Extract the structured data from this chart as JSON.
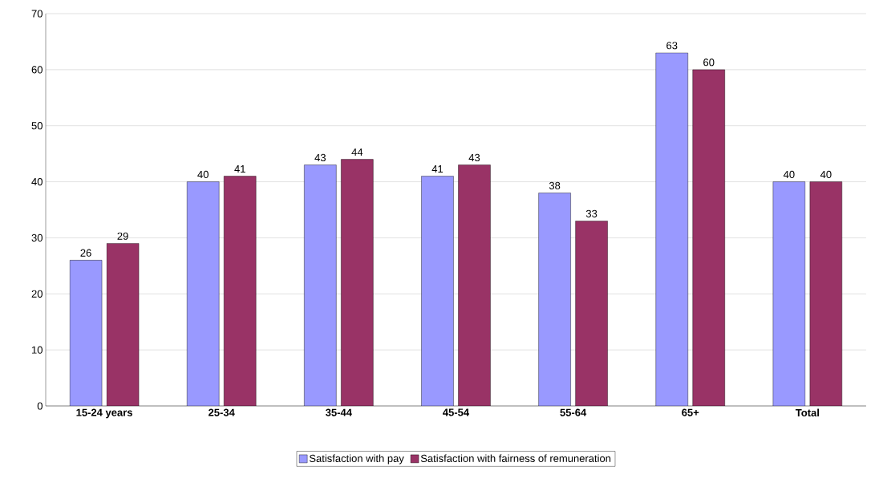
{
  "chart_data": {
    "type": "bar",
    "categories": [
      "15-24 years",
      "25-34",
      "35-44",
      "45-54",
      "55-64",
      "65+",
      "Total"
    ],
    "series": [
      {
        "name": "Satisfaction with pay",
        "color": "#9999ff",
        "values": [
          26,
          40,
          43,
          41,
          38,
          63,
          40
        ]
      },
      {
        "name": "Satisfaction with fairness of remuneration",
        "color": "#993366",
        "values": [
          29,
          41,
          44,
          43,
          33,
          60,
          40
        ]
      }
    ],
    "ylim": [
      0,
      70
    ],
    "yticks": [
      0,
      10,
      20,
      30,
      40,
      50,
      60,
      70
    ],
    "grid": "y",
    "legend": "bottom",
    "data_labels": true
  }
}
